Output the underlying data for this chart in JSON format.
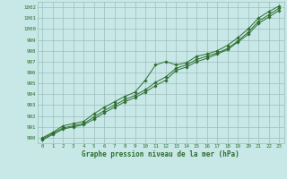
{
  "xlabel": "Graphe pression niveau de la mer (hPa)",
  "ylim": [
    989.5,
    1002.5
  ],
  "xlim": [
    -0.5,
    23.5
  ],
  "yticks": [
    990,
    991,
    992,
    993,
    994,
    995,
    996,
    997,
    998,
    999,
    1000,
    1001,
    1002
  ],
  "xticks": [
    0,
    1,
    2,
    3,
    4,
    5,
    6,
    7,
    8,
    9,
    10,
    11,
    12,
    13,
    14,
    15,
    16,
    17,
    18,
    19,
    20,
    21,
    22,
    23
  ],
  "bg_color": "#c8e8e8",
  "grid_color": "#9dbdbd",
  "line_color": "#2d6e2d",
  "line1": [
    990.0,
    990.5,
    991.1,
    991.3,
    991.5,
    992.2,
    992.8,
    993.3,
    993.8,
    994.2,
    995.3,
    996.7,
    997.0,
    996.7,
    996.9,
    997.5,
    997.7,
    998.0,
    998.5,
    999.2,
    1000.0,
    1001.0,
    1001.6,
    1002.1
  ],
  "line2": [
    989.9,
    990.4,
    990.9,
    991.1,
    991.3,
    991.9,
    992.5,
    993.0,
    993.5,
    993.9,
    994.4,
    995.1,
    995.6,
    996.4,
    996.7,
    997.2,
    997.5,
    997.8,
    998.2,
    998.9,
    999.7,
    1000.7,
    1001.3,
    1001.9
  ],
  "line3": [
    989.8,
    990.3,
    990.8,
    991.0,
    991.2,
    991.7,
    992.3,
    992.8,
    993.3,
    993.7,
    994.2,
    994.8,
    995.3,
    996.2,
    996.5,
    997.0,
    997.3,
    997.7,
    998.1,
    998.8,
    999.5,
    1000.5,
    1001.1,
    1001.7
  ],
  "figsize": [
    3.2,
    2.0
  ],
  "dpi": 100
}
